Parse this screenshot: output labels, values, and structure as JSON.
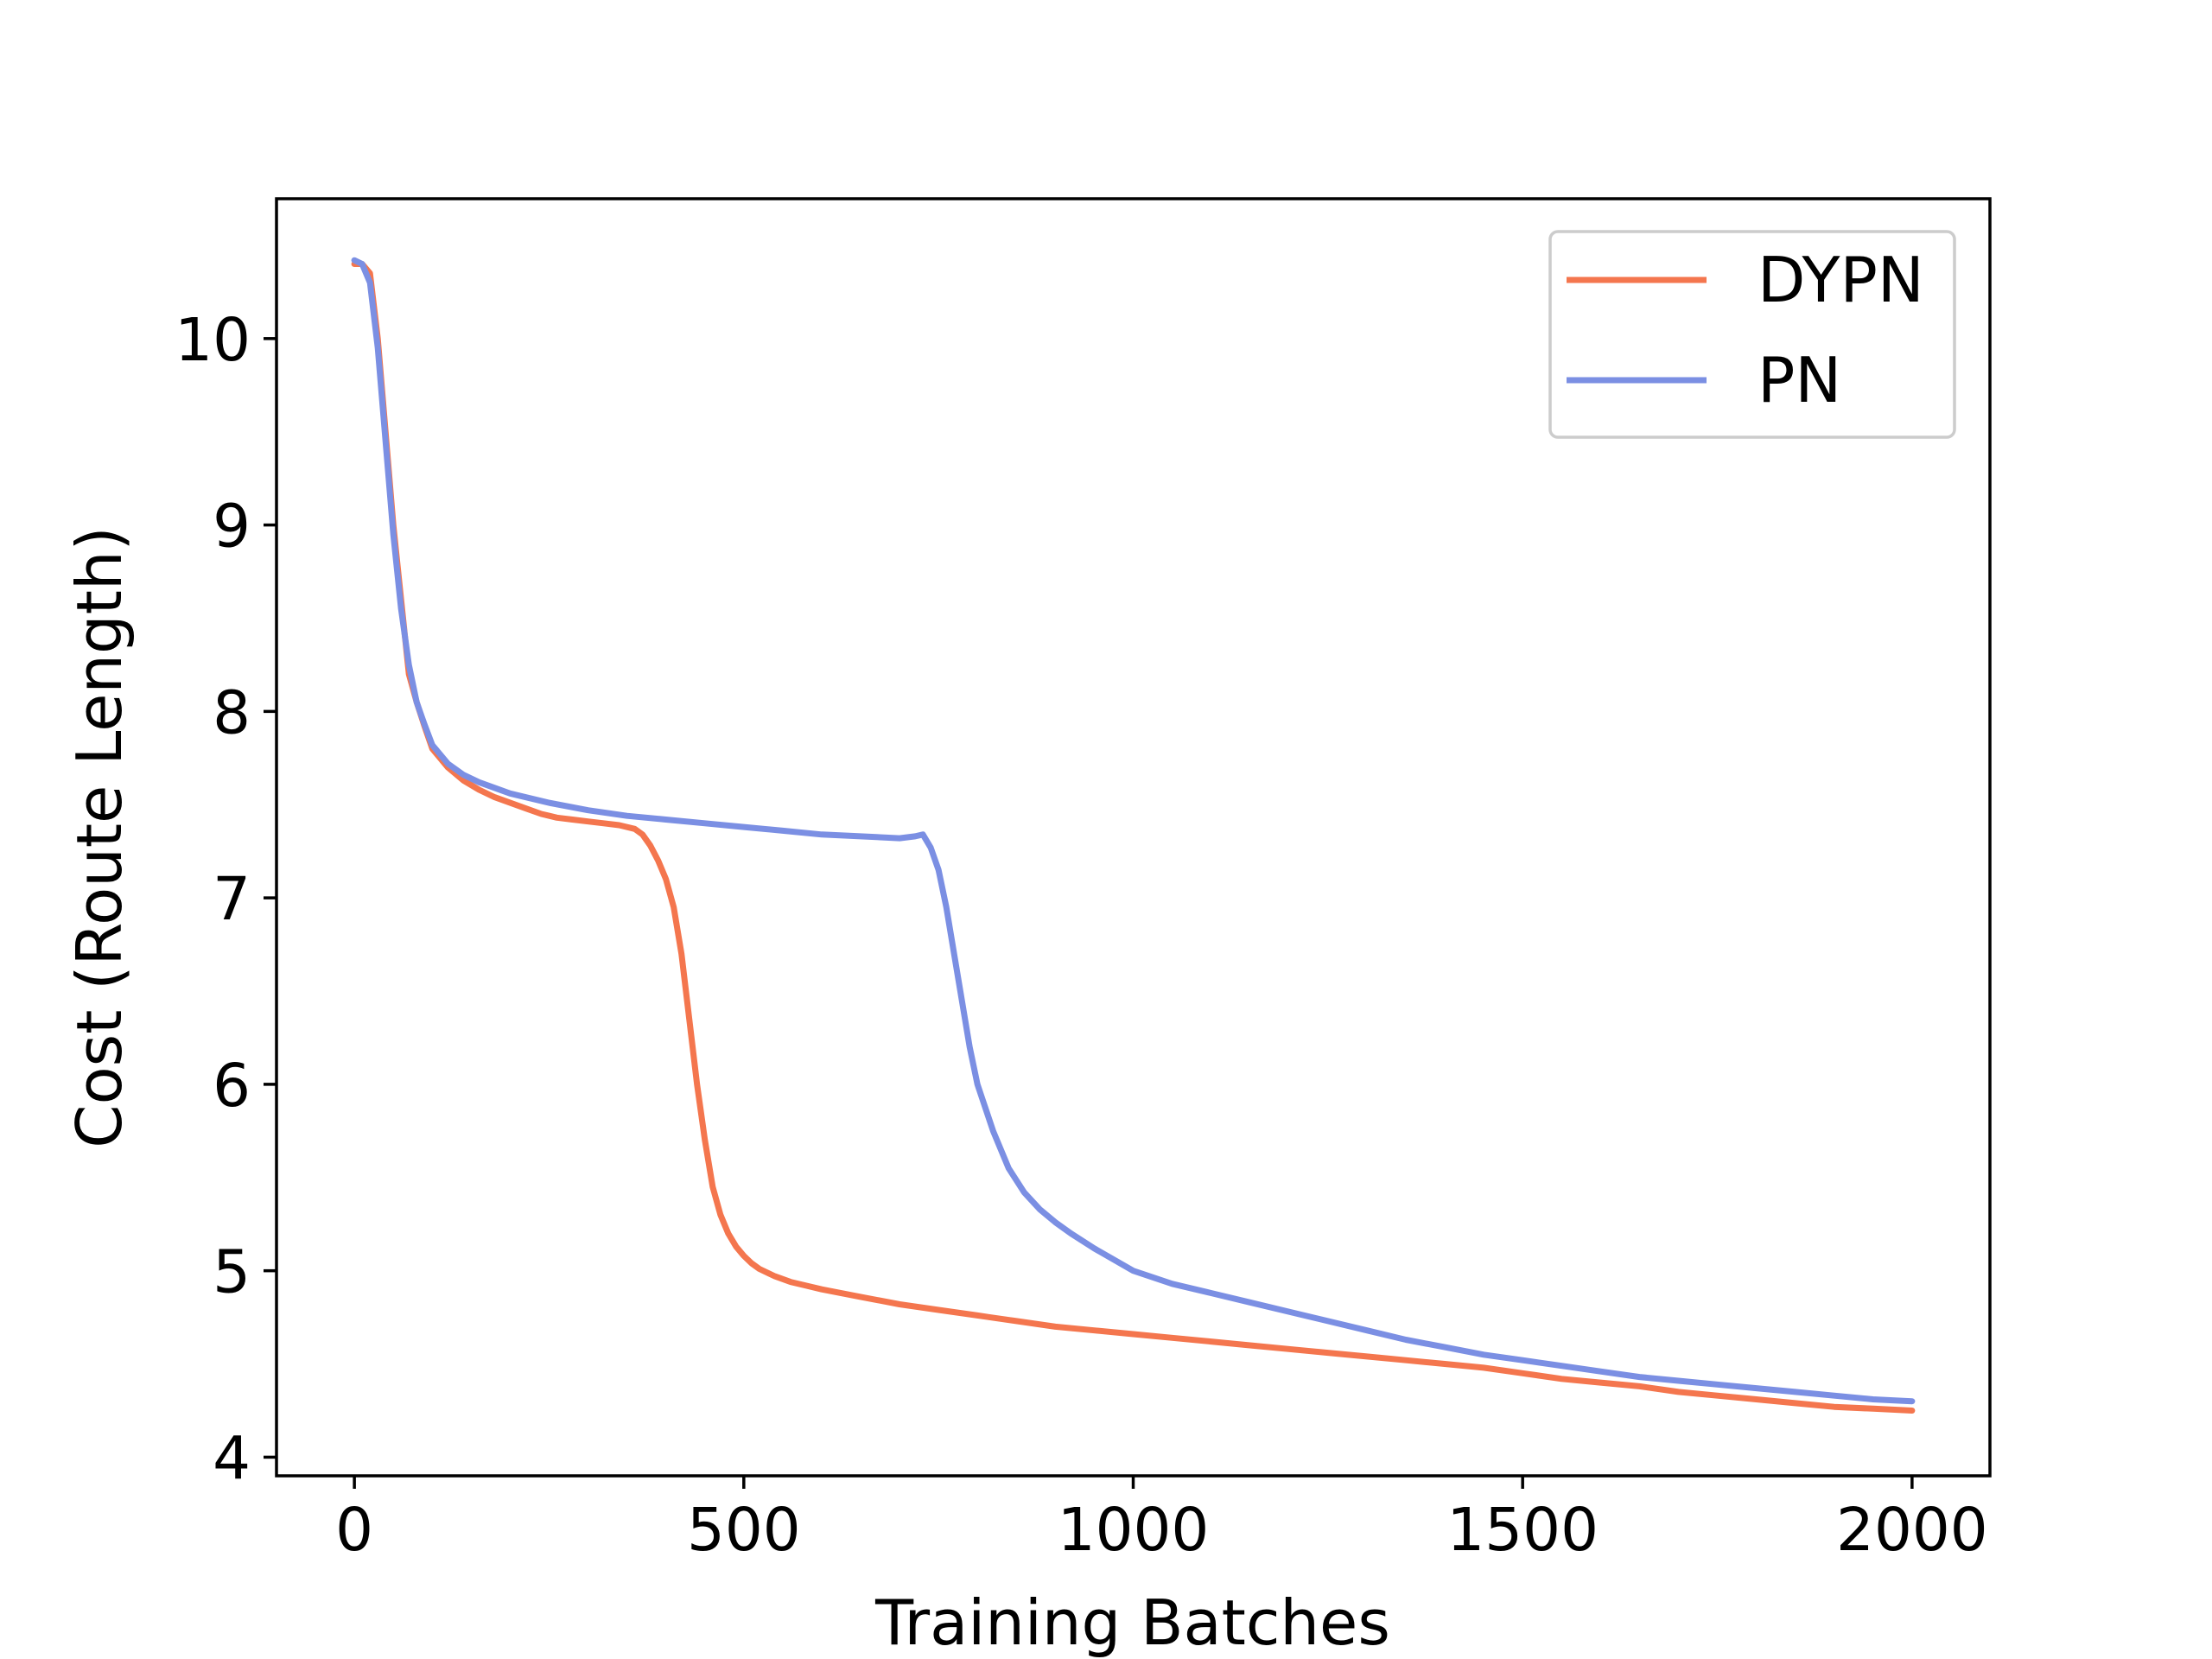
{
  "chart_data": {
    "type": "line",
    "title": "",
    "xlabel": "Training Batches",
    "ylabel": "Cost (Route Length)",
    "xlim": [
      -100,
      2100
    ],
    "ylim": [
      3.9,
      10.75
    ],
    "xticks": [
      0,
      500,
      1000,
      1500,
      2000
    ],
    "xtick_labels": [
      "0",
      "500",
      "1000",
      "1500",
      "2000"
    ],
    "yticks": [
      4,
      5,
      6,
      7,
      8,
      9,
      10
    ],
    "ytick_labels": [
      "4",
      "5",
      "6",
      "7",
      "8",
      "9",
      "10"
    ],
    "grid": false,
    "legend_position": "upper right",
    "series": [
      {
        "name": "DYPN",
        "color": "#f4764e",
        "x": [
          0,
          10,
          20,
          30,
          40,
          50,
          60,
          70,
          80,
          90,
          100,
          120,
          140,
          160,
          180,
          200,
          220,
          240,
          260,
          280,
          300,
          320,
          340,
          360,
          370,
          380,
          390,
          400,
          410,
          420,
          430,
          440,
          450,
          460,
          470,
          480,
          490,
          500,
          510,
          520,
          540,
          560,
          580,
          600,
          650,
          700,
          750,
          800,
          850,
          900,
          950,
          1000,
          1050,
          1100,
          1150,
          1200,
          1250,
          1300,
          1350,
          1400,
          1450,
          1500,
          1550,
          1600,
          1650,
          1700,
          1750,
          1800,
          1850,
          1900,
          1950,
          2000
        ],
        "values": [
          10.4,
          10.4,
          10.35,
          10.0,
          9.5,
          9.0,
          8.6,
          8.2,
          8.05,
          7.92,
          7.8,
          7.7,
          7.63,
          7.58,
          7.54,
          7.51,
          7.48,
          7.45,
          7.43,
          7.42,
          7.41,
          7.4,
          7.39,
          7.37,
          7.34,
          7.28,
          7.2,
          7.1,
          6.95,
          6.7,
          6.35,
          6.0,
          5.7,
          5.45,
          5.3,
          5.2,
          5.13,
          5.08,
          5.04,
          5.01,
          4.97,
          4.94,
          4.92,
          4.9,
          4.86,
          4.82,
          4.79,
          4.76,
          4.73,
          4.7,
          4.68,
          4.66,
          4.64,
          4.62,
          4.6,
          4.58,
          4.56,
          4.54,
          4.52,
          4.5,
          4.48,
          4.45,
          4.42,
          4.4,
          4.38,
          4.35,
          4.33,
          4.31,
          4.29,
          4.27,
          4.26,
          4.25
        ]
      },
      {
        "name": "PN",
        "color": "#7b8fe3",
        "x": [
          0,
          10,
          20,
          30,
          40,
          50,
          60,
          70,
          80,
          90,
          100,
          120,
          140,
          160,
          180,
          200,
          250,
          300,
          350,
          400,
          450,
          500,
          550,
          600,
          650,
          700,
          720,
          730,
          740,
          750,
          760,
          770,
          780,
          790,
          800,
          820,
          840,
          860,
          880,
          900,
          920,
          950,
          1000,
          1050,
          1100,
          1150,
          1200,
          1250,
          1300,
          1350,
          1400,
          1450,
          1500,
          1550,
          1600,
          1650,
          1700,
          1750,
          1800,
          1850,
          1900,
          1950,
          2000
        ],
        "values": [
          10.42,
          10.4,
          10.3,
          9.95,
          9.45,
          8.95,
          8.55,
          8.25,
          8.05,
          7.93,
          7.82,
          7.72,
          7.66,
          7.62,
          7.59,
          7.56,
          7.51,
          7.47,
          7.44,
          7.42,
          7.4,
          7.38,
          7.36,
          7.34,
          7.33,
          7.32,
          7.33,
          7.34,
          7.27,
          7.15,
          6.95,
          6.7,
          6.45,
          6.2,
          6.0,
          5.75,
          5.55,
          5.42,
          5.33,
          5.26,
          5.2,
          5.12,
          5.0,
          4.93,
          4.88,
          4.83,
          4.78,
          4.73,
          4.68,
          4.63,
          4.59,
          4.55,
          4.52,
          4.49,
          4.46,
          4.43,
          4.41,
          4.39,
          4.37,
          4.35,
          4.33,
          4.31,
          4.3
        ]
      }
    ]
  }
}
